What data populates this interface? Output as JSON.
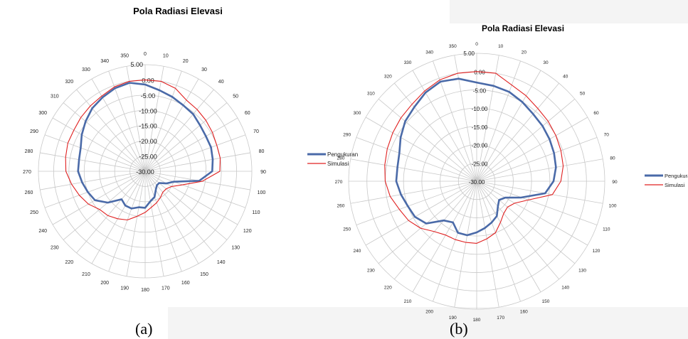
{
  "chart_data": [
    {
      "type": "radar",
      "title": "Pola Radiasi Elevasi",
      "caption": "(a)",
      "angles": [
        0,
        10,
        20,
        30,
        40,
        50,
        60,
        70,
        80,
        90,
        100,
        110,
        120,
        130,
        140,
        150,
        160,
        170,
        180,
        190,
        200,
        210,
        220,
        230,
        240,
        250,
        260,
        270,
        280,
        290,
        300,
        310,
        320,
        330,
        340,
        350
      ],
      "radial_labels": [
        "0.00",
        "-5.00",
        "-10.00",
        "-15.00",
        "-20.00",
        "-25.00",
        "-30.00"
      ],
      "outer_label": "5.00",
      "rlim": [
        -30,
        5
      ],
      "grid": true,
      "legend_position": "right",
      "series": [
        {
          "name": "Pengukuran",
          "color": "#4a6aa8",
          "values": [
            -1.5,
            -3,
            -4,
            -5,
            -5.5,
            -6.5,
            -7,
            -7,
            -7.5,
            -8,
            -12,
            -20,
            -22,
            -24,
            -24,
            -23,
            -21,
            -20,
            -18,
            -18,
            -17,
            -17,
            -18,
            -14,
            -11,
            -10,
            -9,
            -8,
            -8,
            -7.5,
            -6,
            -4.5,
            -3,
            -2,
            -1,
            -0.5
          ]
        },
        {
          "name": "Simulasi",
          "color": "#e02020",
          "values": [
            0,
            0,
            -1,
            -3,
            -3.5,
            -4,
            -4.5,
            -5,
            -5,
            -5.5,
            -11,
            -17,
            -20,
            -21,
            -21,
            -20,
            -19,
            -18,
            -16.5,
            -15,
            -13,
            -12,
            -11,
            -10.5,
            -8.5,
            -7,
            -5.5,
            -4,
            -3.5,
            -3,
            -3,
            -2.5,
            -2,
            -1.5,
            -0.5,
            0
          ]
        }
      ]
    },
    {
      "type": "radar",
      "title": "Pola Radiasi Elevasi",
      "caption": "(b)",
      "angles": [
        0,
        10,
        20,
        30,
        40,
        50,
        60,
        70,
        80,
        90,
        100,
        110,
        120,
        130,
        140,
        150,
        160,
        170,
        180,
        190,
        200,
        210,
        220,
        230,
        240,
        250,
        260,
        270,
        280,
        290,
        300,
        310,
        320,
        330,
        340,
        350
      ],
      "radial_labels": [
        "0.00",
        "-5.00",
        "-10.00",
        "-15.00",
        "-20.00",
        "-25.00",
        "-30.00"
      ],
      "outer_label": "5.00",
      "rlim": [
        -30,
        5
      ],
      "grid": true,
      "legend_position": "right",
      "series": [
        {
          "name": "Pengukuran",
          "color": "#4a6aa8",
          "values": [
            -3,
            -3.5,
            -4,
            -5,
            -6,
            -6.5,
            -7,
            -7.5,
            -8,
            -9,
            -11,
            -17,
            -21,
            -22,
            -21,
            -19,
            -18,
            -17,
            -16,
            -15,
            -15,
            -17,
            -16,
            -12,
            -10.5,
            -10,
            -9,
            -8,
            -8,
            -7.5,
            -6,
            -4.5,
            -3.5,
            -2,
            -1,
            -1.5
          ]
        },
        {
          "name": "Simulasi",
          "color": "#e02020",
          "values": [
            0,
            0,
            -2,
            -3,
            -4,
            -4.5,
            -5,
            -5.5,
            -6,
            -7,
            -9,
            -15,
            -18,
            -19,
            -18.5,
            -17,
            -15,
            -14,
            -13,
            -13,
            -13,
            -13,
            -12,
            -10,
            -8.5,
            -7.5,
            -6,
            -5,
            -4.5,
            -4,
            -3.5,
            -3,
            -2.5,
            -1.5,
            -0.5,
            0
          ]
        }
      ]
    }
  ]
}
